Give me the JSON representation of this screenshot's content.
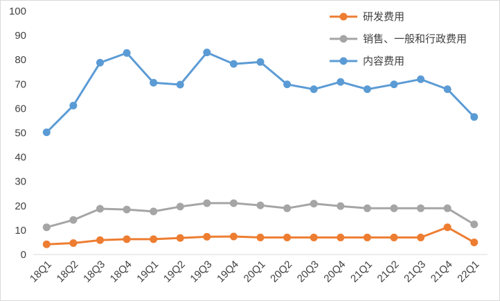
{
  "chart_data": {
    "type": "line",
    "title": "",
    "xlabel": "",
    "ylabel": "",
    "ylim": [
      0,
      100
    ],
    "yticks": [
      0,
      10,
      20,
      30,
      40,
      50,
      60,
      70,
      80,
      90,
      100
    ],
    "grid": false,
    "legend_position": "top-right",
    "categories": [
      "18Q1",
      "18Q2",
      "18Q3",
      "18Q4",
      "19Q1",
      "19Q2",
      "19Q3",
      "19Q4",
      "20Q1",
      "20Q2",
      "20Q3",
      "20Q4",
      "21Q1",
      "21Q2",
      "21Q3",
      "21Q4",
      "22Q1"
    ],
    "series": [
      {
        "name": "研发费用",
        "color": "#ed7d31",
        "values": [
          4.2,
          4.7,
          5.9,
          6.3,
          6.3,
          6.8,
          7.3,
          7.4,
          7.0,
          7.0,
          7.0,
          7.0,
          7.0,
          7.0,
          7.0,
          11.2,
          5.0
        ]
      },
      {
        "name": "销售、一般和行政费用",
        "color": "#a5a5a5",
        "values": [
          11.2,
          14.2,
          18.8,
          18.5,
          17.7,
          19.7,
          21.1,
          21.1,
          20.2,
          19.0,
          20.9,
          19.9,
          19.0,
          19.0,
          19.0,
          19.0,
          12.4
        ]
      },
      {
        "name": "内容费用",
        "color": "#5b9bd5",
        "values": [
          50.2,
          61.2,
          78.8,
          82.8,
          70.6,
          69.8,
          83.0,
          78.3,
          79.1,
          69.9,
          67.9,
          70.9,
          67.9,
          69.9,
          72.0,
          67.9,
          56.5
        ]
      }
    ]
  }
}
